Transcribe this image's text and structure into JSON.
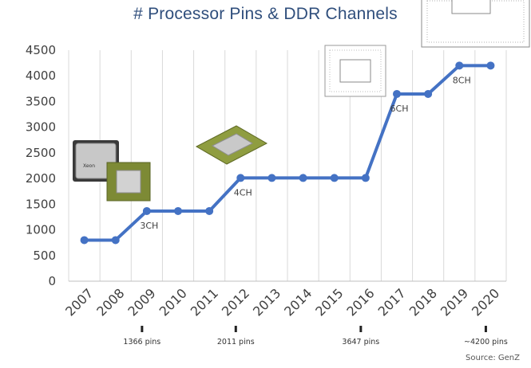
{
  "page": {
    "title": "# Processor Pins & DDR Channels",
    "source": "Source:  GenZ"
  },
  "colors": {
    "line": "#4472c4",
    "grid": "#d9d9d9",
    "title": "#2f4e7c",
    "chip_green": "#8a9a3a",
    "chip_silver": "#b8b8b8"
  },
  "images": {
    "xeon_chip_text": "Xeon"
  },
  "chart_data": {
    "type": "line",
    "title": "# Processor Pins & DDR Channels",
    "xlabel": "",
    "ylabel": "",
    "categories": [
      "2007",
      "2008",
      "2009",
      "2010",
      "2011",
      "2012",
      "2013",
      "2014",
      "2015",
      "2016",
      "2017",
      "2018",
      "2019",
      "2020"
    ],
    "series": [
      {
        "values": [
          800,
          800,
          1366,
          1366,
          1366,
          2011,
          2011,
          2011,
          2011,
          2011,
          3647,
          3647,
          4200,
          4200
        ]
      }
    ],
    "ylim": [
      0,
      4500
    ],
    "yticks": [
      0,
      500,
      1000,
      1500,
      2000,
      2500,
      3000,
      3500,
      4000,
      4500
    ],
    "grid": "vertical",
    "channel_labels": [
      {
        "x": "2009",
        "text": "3CH"
      },
      {
        "x": "2012",
        "text": "4CH"
      },
      {
        "x": "2017",
        "text": "6CH"
      },
      {
        "x": "2019",
        "text": "8CH"
      }
    ],
    "pin_annotations": [
      {
        "x": "2009",
        "text": "1366 pins"
      },
      {
        "x": "2012",
        "text": "2011 pins"
      },
      {
        "x": "2016",
        "text": "3647 pins"
      },
      {
        "x": "2020",
        "text": "~4200 pins"
      }
    ]
  }
}
